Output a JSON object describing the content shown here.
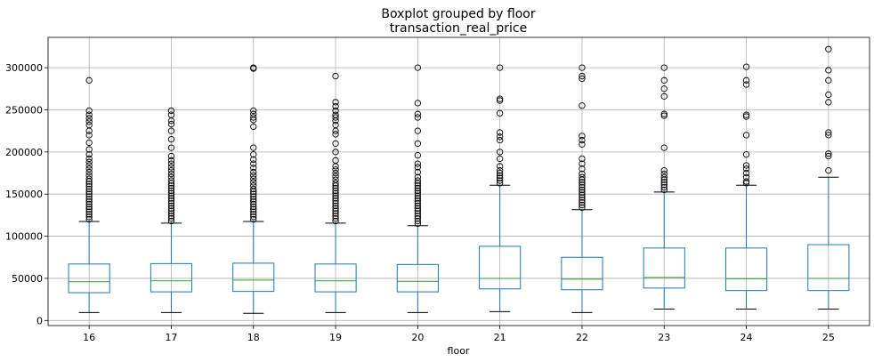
{
  "chart_data": {
    "type": "boxplot",
    "suptitle": "Boxplot grouped by floor",
    "title": "transaction_real_price",
    "xlabel": "floor",
    "ylabel": "",
    "ylim": [
      -6000,
      336000
    ],
    "yticks": [
      0,
      50000,
      100000,
      150000,
      200000,
      250000,
      300000
    ],
    "ytick_labels": [
      "0",
      "50000",
      "100000",
      "150000",
      "200000",
      "250000",
      "300000"
    ],
    "grid": true,
    "colors": {
      "box": "#1f77b4",
      "median": "#2ca02c",
      "whisker": "#1f77b4",
      "cap": "#000000",
      "flier": "#000000",
      "grid": "#b0b0b0"
    },
    "categories": [
      "16",
      "17",
      "18",
      "19",
      "20",
      "21",
      "22",
      "23",
      "24",
      "25"
    ],
    "boxes": [
      {
        "whislo": 9500,
        "q1": 33000,
        "med": 46000,
        "q3": 67000,
        "whishi": 117500,
        "fliers": [
          120000,
          123000,
          126000,
          129000,
          132000,
          135000,
          138000,
          141000,
          144000,
          147000,
          150000,
          153000,
          156000,
          159000,
          162000,
          165000,
          168000,
          172000,
          176000,
          180000,
          184000,
          188000,
          192000,
          197000,
          203000,
          211000,
          220000,
          225000,
          232000,
          236000,
          240000,
          244000,
          249000,
          285000
        ]
      },
      {
        "whislo": 9500,
        "q1": 34000,
        "med": 47000,
        "q3": 67500,
        "whishi": 115500,
        "fliers": [
          118000,
          121000,
          124000,
          127000,
          130000,
          133000,
          136000,
          139000,
          142000,
          145000,
          148000,
          151000,
          154000,
          157000,
          160000,
          163000,
          166000,
          170000,
          174000,
          178000,
          182000,
          186000,
          190000,
          195000,
          205000,
          215000,
          225000,
          233000,
          237000,
          244000,
          249000
        ]
      },
      {
        "whislo": 8500,
        "q1": 34500,
        "med": 48000,
        "q3": 68000,
        "whishi": 117500,
        "fliers": [
          120000,
          123000,
          126000,
          129000,
          132000,
          135000,
          138000,
          141000,
          144000,
          147000,
          150000,
          153000,
          156000,
          160000,
          164000,
          168000,
          172000,
          176000,
          181000,
          186000,
          191000,
          197000,
          205000,
          230000,
          238000,
          241000,
          245000,
          249000,
          299000,
          300000
        ]
      },
      {
        "whislo": 9500,
        "q1": 34000,
        "med": 47000,
        "q3": 67000,
        "whishi": 115500,
        "fliers": [
          118000,
          121000,
          124000,
          127000,
          130000,
          133000,
          136000,
          139000,
          142000,
          145000,
          148000,
          151000,
          154000,
          157000,
          160000,
          163000,
          167000,
          171000,
          175000,
          179000,
          183000,
          190000,
          200000,
          210000,
          221000,
          225000,
          232000,
          237000,
          241000,
          244000,
          249000,
          254000,
          259000,
          290000
        ]
      },
      {
        "whislo": 9500,
        "q1": 34000,
        "med": 46500,
        "q3": 66500,
        "whishi": 112500,
        "fliers": [
          115000,
          118000,
          121000,
          124000,
          127000,
          130000,
          133000,
          136000,
          139000,
          142000,
          145000,
          148000,
          151000,
          154000,
          157000,
          160000,
          163000,
          166000,
          170000,
          176000,
          182000,
          186000,
          196000,
          210000,
          225000,
          241000,
          245000,
          258000,
          300000
        ]
      },
      {
        "whislo": 10500,
        "q1": 37500,
        "med": 50000,
        "q3": 88000,
        "whishi": 160500,
        "fliers": [
          163000,
          166000,
          169000,
          172000,
          175000,
          178000,
          183000,
          192000,
          200000,
          214000,
          218000,
          223000,
          246000,
          261000,
          263000,
          300000
        ]
      },
      {
        "whislo": 9500,
        "q1": 36500,
        "med": 49000,
        "q3": 75000,
        "whishi": 131500,
        "fliers": [
          134000,
          137000,
          140000,
          143000,
          146000,
          149000,
          152000,
          155000,
          158000,
          161000,
          164000,
          167000,
          170000,
          174000,
          180000,
          186000,
          192000,
          209000,
          214000,
          219000,
          255000,
          287000,
          290000,
          300000
        ]
      },
      {
        "whislo": 13500,
        "q1": 38500,
        "med": 51000,
        "q3": 86000,
        "whishi": 152500,
        "fliers": [
          155000,
          158000,
          161000,
          164000,
          167000,
          170000,
          174000,
          178000,
          205000,
          243000,
          245000,
          266000,
          275000,
          285000,
          300000
        ]
      },
      {
        "whislo": 13500,
        "q1": 35500,
        "med": 49500,
        "q3": 86000,
        "whishi": 160500,
        "fliers": [
          163000,
          165000,
          170000,
          175000,
          180000,
          184000,
          197000,
          220000,
          242000,
          244000,
          280000,
          285000,
          301000
        ]
      },
      {
        "whislo": 13500,
        "q1": 35500,
        "med": 50000,
        "q3": 90000,
        "whishi": 170000,
        "fliers": [
          178000,
          195000,
          198000,
          220000,
          223000,
          259000,
          268000,
          285000,
          297000,
          322000
        ]
      }
    ]
  }
}
